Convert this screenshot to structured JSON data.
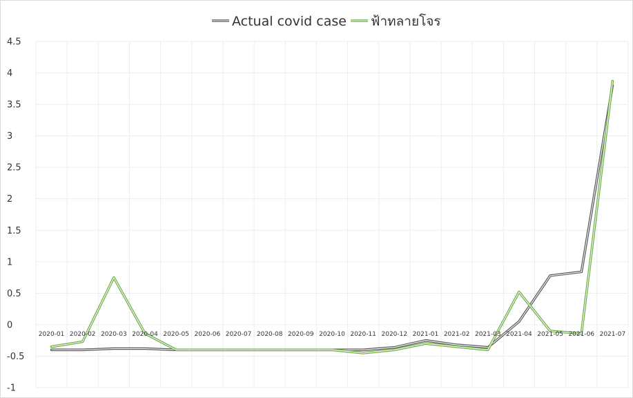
{
  "chart_data": {
    "type": "line",
    "title": "",
    "xlabel": "",
    "ylabel": "",
    "categories": [
      "2020-01",
      "2020-02",
      "2020-03",
      "2020-04",
      "2020-05",
      "2020-06",
      "2020-07",
      "2020-08",
      "2020-09",
      "2020-10",
      "2020-11",
      "2020-12",
      "2021-01",
      "2021-02",
      "2021-03",
      "2021-04",
      "2021-05",
      "2021-06",
      "2021-07"
    ],
    "ylim": [
      -1,
      4.5
    ],
    "yticks": [
      "-1",
      "-0.5",
      "0",
      "0.5",
      "1",
      "1.5",
      "2",
      "2.5",
      "3",
      "3.5",
      "4",
      "4.5"
    ],
    "grid": true,
    "legend_position": "top",
    "series": [
      {
        "name": "Actual covid case",
        "color": "#595959",
        "values": [
          -0.4,
          -0.4,
          -0.38,
          -0.38,
          -0.4,
          -0.4,
          -0.4,
          -0.4,
          -0.4,
          -0.4,
          -0.4,
          -0.36,
          -0.25,
          -0.32,
          -0.36,
          0.05,
          0.78,
          0.84,
          3.8
        ]
      },
      {
        "name": "ฟ้าทลายโจร",
        "color": "#70ad47",
        "values": [
          -0.35,
          -0.27,
          0.75,
          -0.14,
          -0.4,
          -0.4,
          -0.4,
          -0.4,
          -0.4,
          -0.4,
          -0.45,
          -0.4,
          -0.3,
          -0.35,
          -0.4,
          0.52,
          -0.1,
          -0.14,
          3.87
        ]
      }
    ]
  }
}
